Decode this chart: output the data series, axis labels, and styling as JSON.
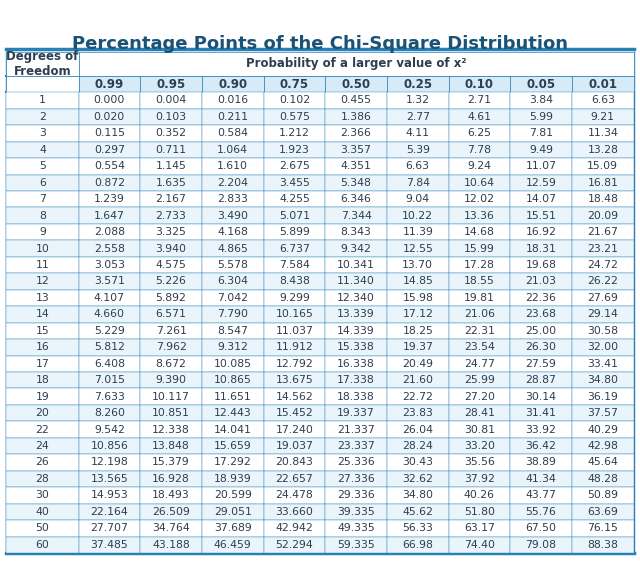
{
  "title": "Percentage Points of the Chi-Square Distribution",
  "subtitle": "Probability of a larger value of x²",
  "col_header_label": "Degrees of\nFreedom",
  "prob_cols": [
    "0.99",
    "0.95",
    "0.90",
    "0.75",
    "0.50",
    "0.25",
    "0.10",
    "0.05",
    "0.01"
  ],
  "rows": [
    [
      1,
      "0.000",
      "0.004",
      "0.016",
      "0.102",
      "0.455",
      "1.32",
      "2.71",
      "3.84",
      "6.63"
    ],
    [
      2,
      "0.020",
      "0.103",
      "0.211",
      "0.575",
      "1.386",
      "2.77",
      "4.61",
      "5.99",
      "9.21"
    ],
    [
      3,
      "0.115",
      "0.352",
      "0.584",
      "1.212",
      "2.366",
      "4.11",
      "6.25",
      "7.81",
      "11.34"
    ],
    [
      4,
      "0.297",
      "0.711",
      "1.064",
      "1.923",
      "3.357",
      "5.39",
      "7.78",
      "9.49",
      "13.28"
    ],
    [
      5,
      "0.554",
      "1.145",
      "1.610",
      "2.675",
      "4.351",
      "6.63",
      "9.24",
      "11.07",
      "15.09"
    ],
    [
      6,
      "0.872",
      "1.635",
      "2.204",
      "3.455",
      "5.348",
      "7.84",
      "10.64",
      "12.59",
      "16.81"
    ],
    [
      7,
      "1.239",
      "2.167",
      "2.833",
      "4.255",
      "6.346",
      "9.04",
      "12.02",
      "14.07",
      "18.48"
    ],
    [
      8,
      "1.647",
      "2.733",
      "3.490",
      "5.071",
      "7.344",
      "10.22",
      "13.36",
      "15.51",
      "20.09"
    ],
    [
      9,
      "2.088",
      "3.325",
      "4.168",
      "5.899",
      "8.343",
      "11.39",
      "14.68",
      "16.92",
      "21.67"
    ],
    [
      10,
      "2.558",
      "3.940",
      "4.865",
      "6.737",
      "9.342",
      "12.55",
      "15.99",
      "18.31",
      "23.21"
    ],
    [
      11,
      "3.053",
      "4.575",
      "5.578",
      "7.584",
      "10.341",
      "13.70",
      "17.28",
      "19.68",
      "24.72"
    ],
    [
      12,
      "3.571",
      "5.226",
      "6.304",
      "8.438",
      "11.340",
      "14.85",
      "18.55",
      "21.03",
      "26.22"
    ],
    [
      13,
      "4.107",
      "5.892",
      "7.042",
      "9.299",
      "12.340",
      "15.98",
      "19.81",
      "22.36",
      "27.69"
    ],
    [
      14,
      "4.660",
      "6.571",
      "7.790",
      "10.165",
      "13.339",
      "17.12",
      "21.06",
      "23.68",
      "29.14"
    ],
    [
      15,
      "5.229",
      "7.261",
      "8.547",
      "11.037",
      "14.339",
      "18.25",
      "22.31",
      "25.00",
      "30.58"
    ],
    [
      16,
      "5.812",
      "7.962",
      "9.312",
      "11.912",
      "15.338",
      "19.37",
      "23.54",
      "26.30",
      "32.00"
    ],
    [
      17,
      "6.408",
      "8.672",
      "10.085",
      "12.792",
      "16.338",
      "20.49",
      "24.77",
      "27.59",
      "33.41"
    ],
    [
      18,
      "7.015",
      "9.390",
      "10.865",
      "13.675",
      "17.338",
      "21.60",
      "25.99",
      "28.87",
      "34.80"
    ],
    [
      19,
      "7.633",
      "10.117",
      "11.651",
      "14.562",
      "18.338",
      "22.72",
      "27.20",
      "30.14",
      "36.19"
    ],
    [
      20,
      "8.260",
      "10.851",
      "12.443",
      "15.452",
      "19.337",
      "23.83",
      "28.41",
      "31.41",
      "37.57"
    ],
    [
      22,
      "9.542",
      "12.338",
      "14.041",
      "17.240",
      "21.337",
      "26.04",
      "30.81",
      "33.92",
      "40.29"
    ],
    [
      24,
      "10.856",
      "13.848",
      "15.659",
      "19.037",
      "23.337",
      "28.24",
      "33.20",
      "36.42",
      "42.98"
    ],
    [
      26,
      "12.198",
      "15.379",
      "17.292",
      "20.843",
      "25.336",
      "30.43",
      "35.56",
      "38.89",
      "45.64"
    ],
    [
      28,
      "13.565",
      "16.928",
      "18.939",
      "22.657",
      "27.336",
      "32.62",
      "37.92",
      "41.34",
      "48.28"
    ],
    [
      30,
      "14.953",
      "18.493",
      "20.599",
      "24.478",
      "29.336",
      "34.80",
      "40.26",
      "43.77",
      "50.89"
    ],
    [
      40,
      "22.164",
      "26.509",
      "29.051",
      "33.660",
      "39.335",
      "45.62",
      "51.80",
      "55.76",
      "63.69"
    ],
    [
      50,
      "27.707",
      "34.764",
      "37.689",
      "42.942",
      "49.335",
      "56.33",
      "63.17",
      "67.50",
      "76.15"
    ],
    [
      60,
      "37.485",
      "43.188",
      "46.459",
      "52.294",
      "59.335",
      "66.98",
      "74.40",
      "79.08",
      "88.38"
    ]
  ],
  "title_color": "#1a5276",
  "header_bg_color": "#2980b9",
  "header_text_color": "#ffffff",
  "subheader_bg_color": "#d6eaf8",
  "row_bg_even": "#ffffff",
  "row_bg_odd": "#eaf4fb",
  "border_color": "#2980b9",
  "text_color": "#2c3e50",
  "title_fontsize": 13,
  "header_fontsize": 8.5,
  "data_fontsize": 7.8,
  "background_color": "#ffffff"
}
